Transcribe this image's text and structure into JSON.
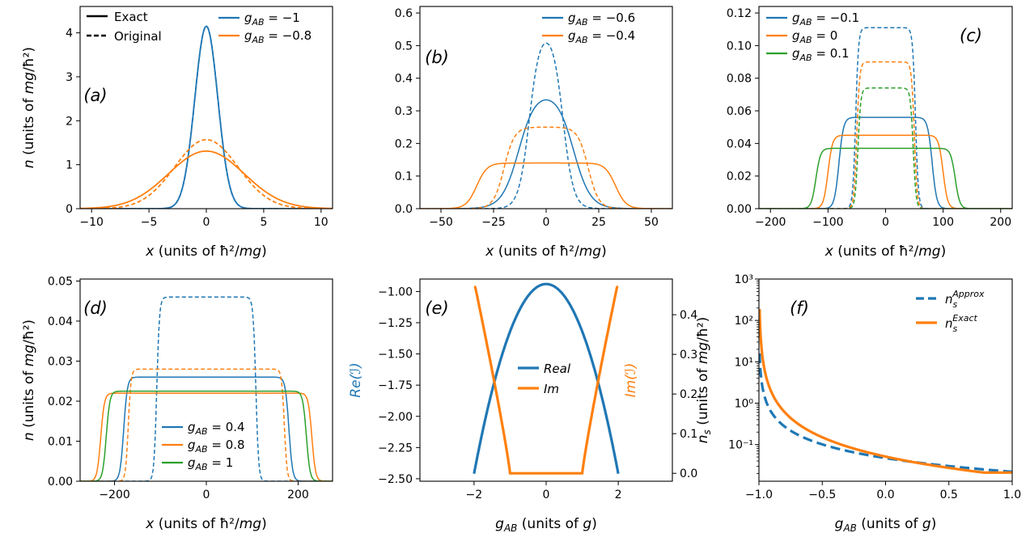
{
  "figure": {
    "colors": {
      "blue": "#1f77b4",
      "orange": "#ff7f0e",
      "green": "#2ca02c"
    }
  },
  "chart_data": [
    {
      "id": "a",
      "type": "line",
      "panel_label": "(a)",
      "xlabel": "x (units of ħ²/mg)",
      "ylabel": "n (units of mg/ħ²)",
      "xlim": [
        -11,
        11
      ],
      "ylim": [
        0,
        4.6
      ],
      "xticks": [
        -10,
        -5,
        0,
        5,
        10
      ],
      "xtick_labels": [
        "−10",
        "−5",
        "0",
        "5",
        "10"
      ],
      "yticks": [
        0,
        1,
        2,
        3,
        4
      ],
      "ytick_labels": [
        "0",
        "1",
        "2",
        "3",
        "4"
      ],
      "style_legend": [
        {
          "label": "Exact",
          "dash": "solid"
        },
        {
          "label": "Original",
          "dash": "dashed"
        }
      ],
      "series": [
        {
          "name": "g_AB = −1",
          "color": "blue",
          "exact": {
            "kind": "gauss",
            "amp": 4.15,
            "sigma": 1.0
          },
          "original": {
            "kind": "gauss",
            "amp": 4.15,
            "sigma": 1.0
          }
        },
        {
          "name": "g_AB = −0.8",
          "color": "orange",
          "exact": {
            "kind": "gauss",
            "amp": 1.31,
            "sigma": 3.3
          },
          "original": {
            "kind": "gauss",
            "amp": 1.57,
            "sigma": 2.75
          }
        }
      ]
    },
    {
      "id": "b",
      "type": "line",
      "panel_label": "(b)",
      "xlabel": "x (units of ħ²/mg)",
      "ylabel": "",
      "xlim": [
        -60,
        60
      ],
      "ylim": [
        0,
        0.62
      ],
      "xticks": [
        -50,
        -25,
        0,
        25,
        50
      ],
      "xtick_labels": [
        "−50",
        "−25",
        "0",
        "25",
        "50"
      ],
      "yticks": [
        0,
        0.1,
        0.2,
        0.3,
        0.4,
        0.5,
        0.6
      ],
      "ytick_labels": [
        "0.0",
        "0.1",
        "0.2",
        "0.3",
        "0.4",
        "0.5",
        "0.6"
      ],
      "series": [
        {
          "name": "g_AB = −0.6",
          "color": "blue",
          "exact": {
            "kind": "flat",
            "amp": 0.36,
            "half_width": 13,
            "edge": 4
          },
          "original": {
            "kind": "flat",
            "amp": 0.55,
            "half_width": 8,
            "edge": 2.5
          }
        },
        {
          "name": "g_AB = −0.4",
          "color": "orange",
          "exact": {
            "kind": "flat",
            "amp": 0.14,
            "half_width": 33,
            "edge": 2.5
          },
          "original": {
            "kind": "flat",
            "amp": 0.25,
            "half_width": 20,
            "edge": 2.5
          }
        }
      ]
    },
    {
      "id": "c",
      "type": "line",
      "panel_label": "(c)",
      "xlabel": "x (units of ħ²/mg)",
      "ylabel": "",
      "xlim": [
        -220,
        220
      ],
      "ylim": [
        0,
        0.124
      ],
      "xticks": [
        -200,
        -100,
        0,
        100,
        200
      ],
      "xtick_labels": [
        "−200",
        "−100",
        "0",
        "100",
        "200"
      ],
      "yticks": [
        0,
        0.02,
        0.04,
        0.06,
        0.08,
        0.1,
        0.12
      ],
      "ytick_labels": [
        "0.00",
        "0.02",
        "0.04",
        "0.06",
        "0.08",
        "0.10",
        "0.12"
      ],
      "series": [
        {
          "name": "g_AB = −0.1",
          "color": "blue",
          "exact": {
            "kind": "flat",
            "amp": 0.056,
            "half_width": 81,
            "edge": 4
          },
          "original": {
            "kind": "flat",
            "amp": 0.111,
            "half_width": 52,
            "edge": 2.5
          }
        },
        {
          "name": "g_AB = 0",
          "color": "orange",
          "exact": {
            "kind": "flat",
            "amp": 0.045,
            "half_width": 100,
            "edge": 4
          },
          "original": {
            "kind": "flat",
            "amp": 0.09,
            "half_width": 50,
            "edge": 2.5
          }
        },
        {
          "name": "g_AB = 0.1",
          "color": "green",
          "exact": {
            "kind": "flat",
            "amp": 0.037,
            "half_width": 121,
            "edge": 4
          },
          "original": {
            "kind": "flat",
            "amp": 0.074,
            "half_width": 48,
            "edge": 2.5
          }
        }
      ]
    },
    {
      "id": "d",
      "type": "line",
      "panel_label": "(d)",
      "xlabel": "x (units of ħ²/mg)",
      "ylabel": "n (units of mg/ħ²)",
      "xlim": [
        -275,
        275
      ],
      "ylim": [
        0,
        0.0505
      ],
      "xticks": [
        -200,
        0,
        200
      ],
      "xtick_labels": [
        "−200",
        "0",
        "200"
      ],
      "yticks": [
        0,
        0.01,
        0.02,
        0.03,
        0.04,
        0.05
      ],
      "ytick_labels": [
        "0.00",
        "0.01",
        "0.02",
        "0.03",
        "0.04",
        "0.05"
      ],
      "series": [
        {
          "name": "g_AB = 0.4",
          "color": "blue",
          "exact": {
            "kind": "flat",
            "amp": 0.026,
            "half_width": 180,
            "edge": 4
          },
          "original": {
            "kind": "flat",
            "amp": 0.046,
            "half_width": 108,
            "edge": 3
          }
        },
        {
          "name": "g_AB = 0.8",
          "color": "orange",
          "exact": {
            "kind": "flat",
            "amp": 0.022,
            "half_width": 230,
            "edge": 4
          },
          "original": {
            "kind": "flat",
            "amp": 0.028,
            "half_width": 170,
            "edge": 3
          }
        },
        {
          "name": "g_AB = 1",
          "color": "green",
          "exact": {
            "kind": "flat",
            "amp": 0.0225,
            "half_width": 218,
            "edge": 4
          }
        }
      ]
    },
    {
      "id": "e",
      "type": "line",
      "panel_label": "(e)",
      "xlabel": "g_AB (units of g)",
      "ylabel": "Re(ℐ)",
      "ylabel_right": "Im(ℐ)",
      "xlim": [
        -3.5,
        3.5
      ],
      "ylim": [
        -2.52,
        -0.9
      ],
      "ylim_right": [
        -0.02,
        0.49
      ],
      "xticks": [
        -2,
        0,
        2
      ],
      "xtick_labels": [
        "−2",
        "0",
        "2"
      ],
      "yticks": [
        -2.5,
        -2.25,
        -2.0,
        -1.75,
        -1.5,
        -1.25,
        -1.0
      ],
      "ytick_labels": [
        "−2.50",
        "−2.25",
        "−2.00",
        "−1.75",
        "−1.50",
        "−1.25",
        "−1.00"
      ],
      "yticks_right": [
        0,
        0.1,
        0.2,
        0.3,
        0.4
      ],
      "ytick_labels_right": [
        "0.0",
        "0.1",
        "0.2",
        "0.3",
        "0.4"
      ],
      "series": [
        {
          "name": "Real",
          "color": "blue",
          "axis": "left",
          "curve": "real"
        },
        {
          "name": "Im",
          "color": "orange",
          "axis": "right",
          "curve": "imag"
        }
      ]
    },
    {
      "id": "f",
      "type": "line",
      "panel_label": "(f)",
      "yscale": "log",
      "xlabel": "g_AB (units of g)",
      "ylabel": "n_s (units of mg/ħ²)",
      "xlim": [
        -1,
        1
      ],
      "ylim": [
        0.013,
        1000
      ],
      "xticks": [
        -1,
        -0.5,
        0,
        0.5,
        1
      ],
      "xtick_labels": [
        "−1.0",
        "−0.5",
        "0.0",
        "0.5",
        "1.0"
      ],
      "yticks": [
        0.1,
        1,
        10,
        100,
        1000
      ],
      "ytick_labels": [
        "10⁻¹",
        "10⁰",
        "10¹",
        "10²",
        "10³"
      ],
      "series": [
        {
          "name": "n_s^Approx",
          "color": "blue",
          "dash": "dashed",
          "y_start": 1000,
          "y_end": 0.022
        },
        {
          "name": "n_s^Exact",
          "color": "orange",
          "dash": "solid",
          "y_start": 1000,
          "y_end": 0.022
        }
      ]
    }
  ]
}
